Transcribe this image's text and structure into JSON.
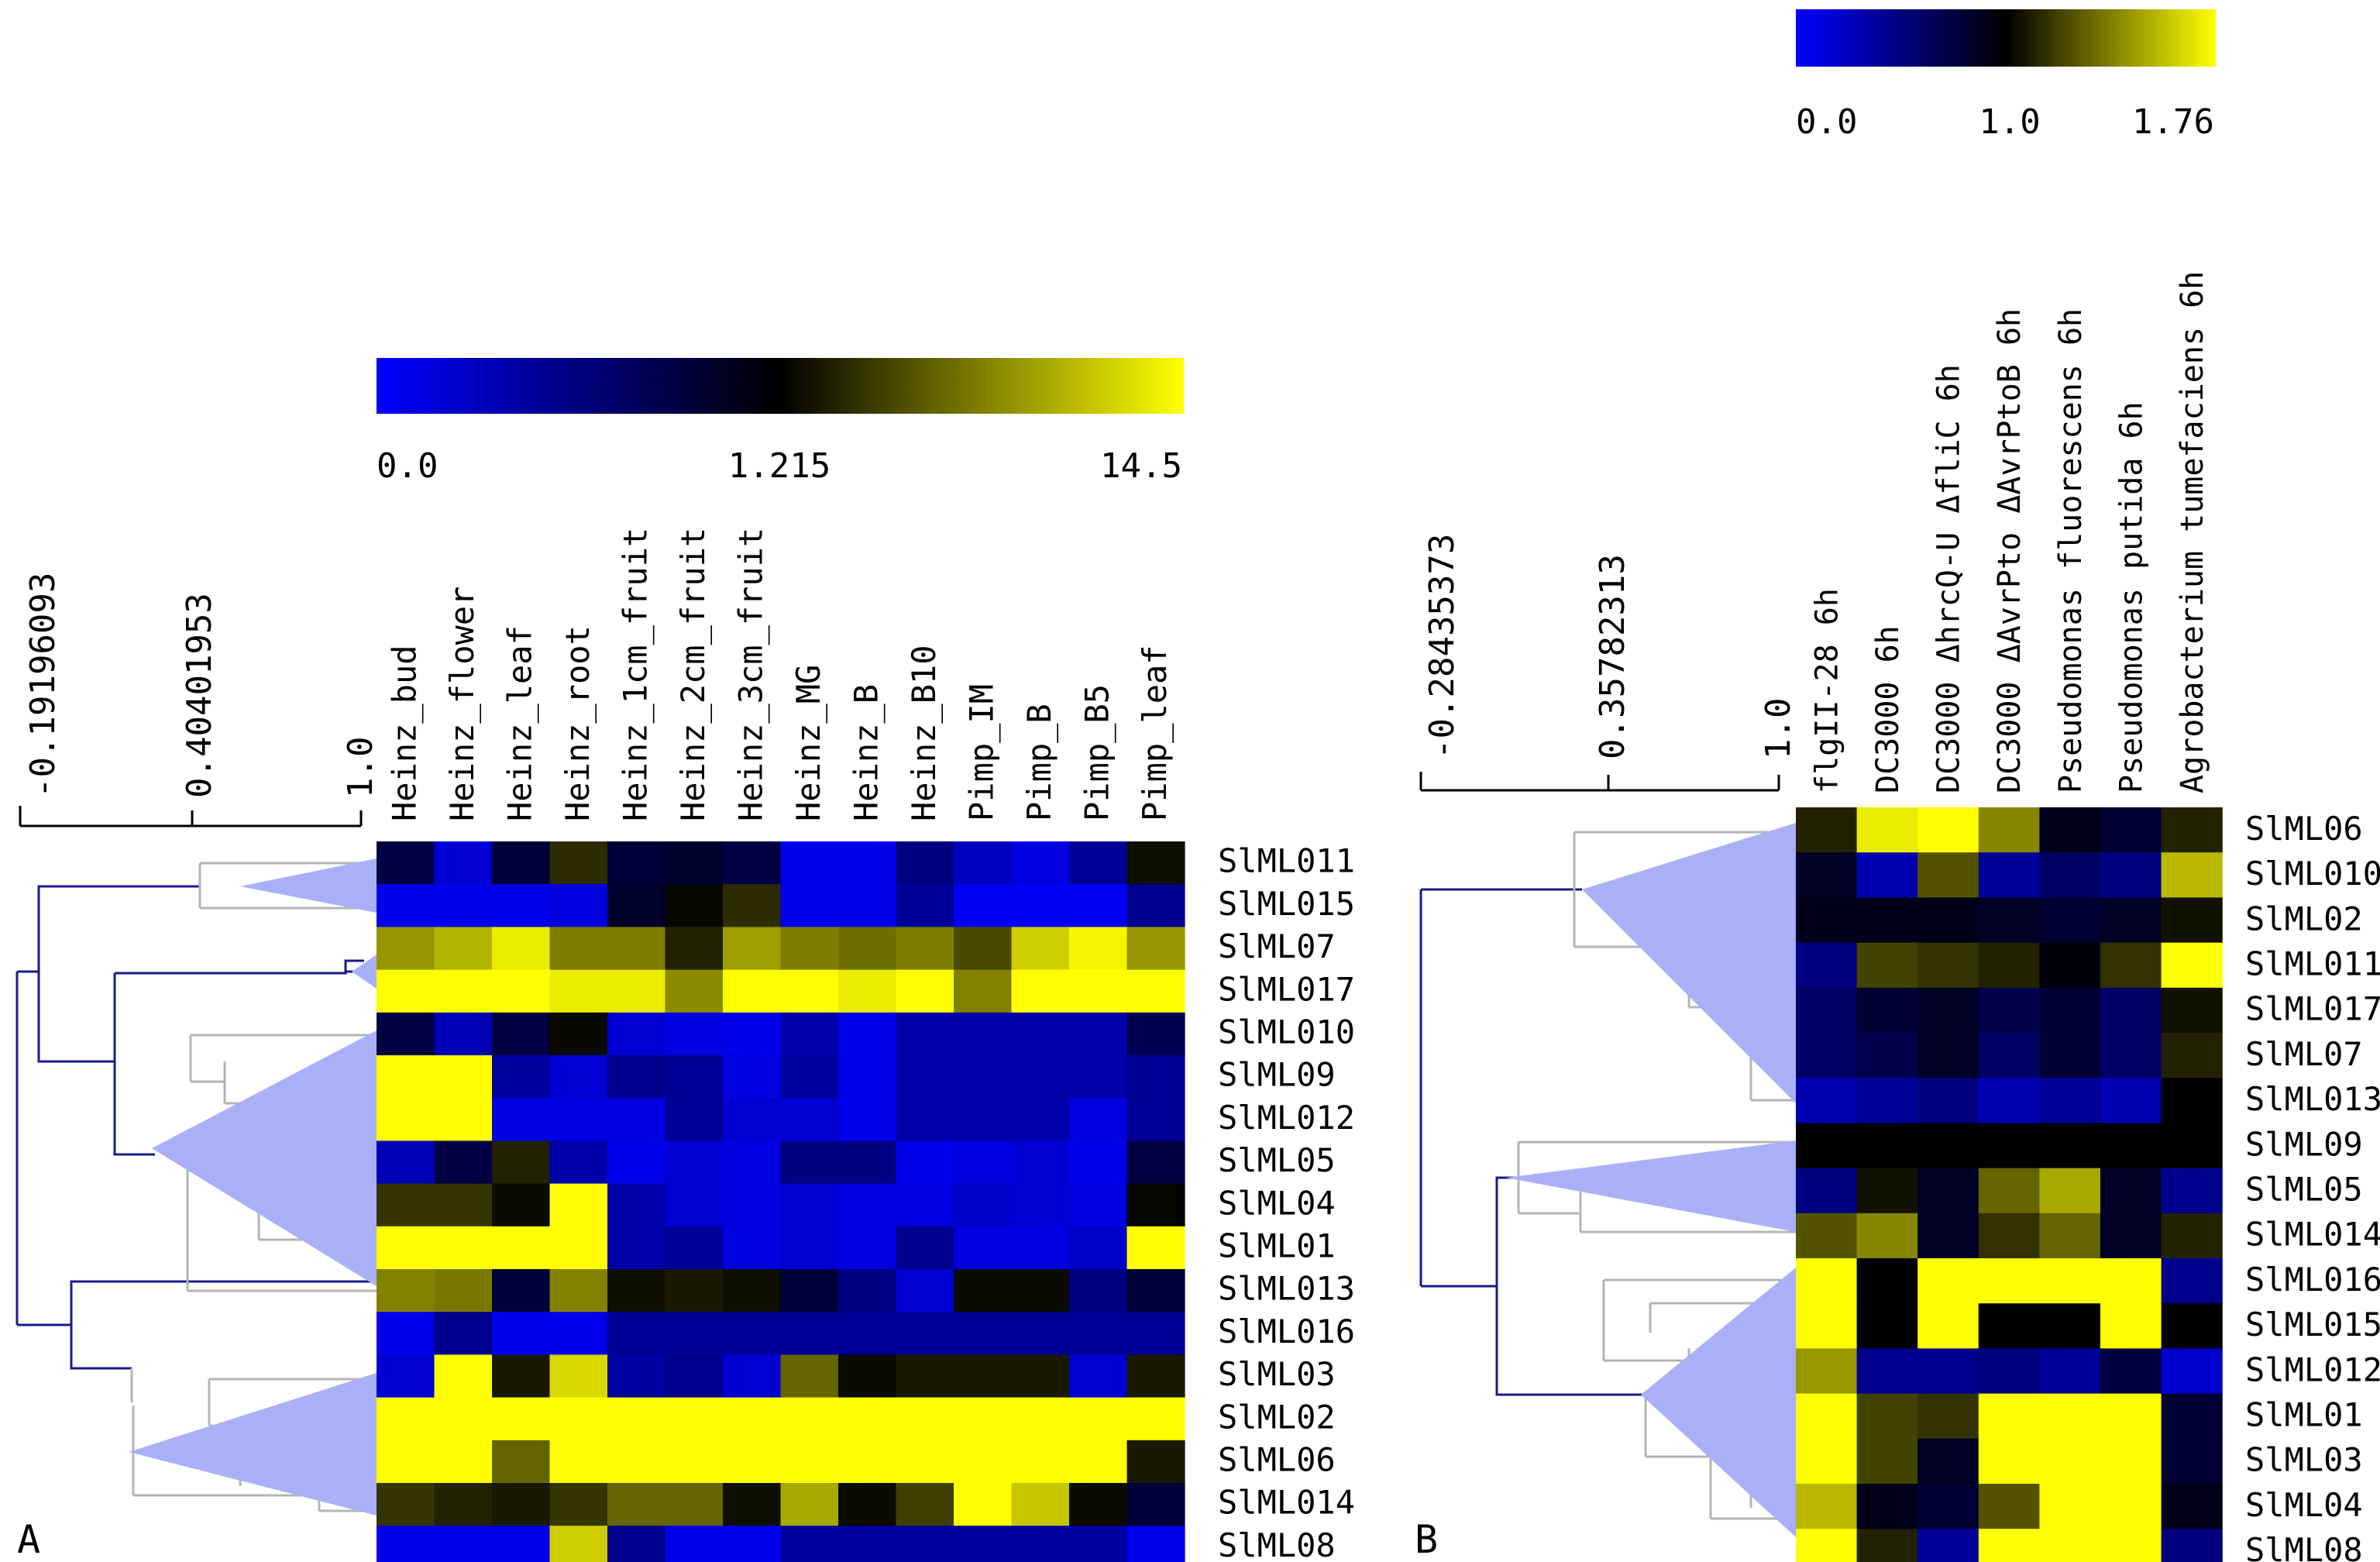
{
  "chart_data": [
    {
      "type": "heatmap",
      "panel_label": "A",
      "columns": [
        "Heinz_bud",
        "Heinz_flower",
        "Heinz_leaf",
        "Heinz_root",
        "Heinz_1cm_fruit",
        "Heinz_2cm_fruit",
        "Heinz_3cm_fruit",
        "Heinz_MG",
        "Heinz_B",
        "Heinz_B10",
        "Pimp_IM",
        "Pimp_B",
        "Pimp_B5",
        "Pimp_leaf"
      ],
      "rows": [
        "SlML011",
        "SlML015",
        "SlML07",
        "SlML017",
        "SlML010",
        "SlML09",
        "SlML012",
        "SlML05",
        "SlML04",
        "SlML01",
        "SlML013",
        "SlML016",
        "SlML03",
        "SlML02",
        "SlML06",
        "SlML014",
        "SlML08"
      ],
      "values": [
        [
          0.9,
          0.2,
          0.95,
          3.5,
          0.95,
          1.0,
          0.9,
          0.1,
          0.1,
          0.6,
          0.3,
          0.15,
          0.5,
          2.0
        ],
        [
          0.1,
          0.1,
          0.1,
          0.15,
          1.0,
          1.6,
          3.5,
          0.1,
          0.1,
          0.5,
          0.05,
          0.05,
          0.05,
          0.55
        ],
        [
          9.0,
          10.5,
          13.5,
          7.8,
          7.8,
          3.0,
          9.5,
          7.8,
          7.0,
          7.8,
          5.0,
          12.0,
          14.0,
          9.0
        ],
        [
          14.5,
          14.5,
          14.5,
          13.5,
          13.5,
          8.5,
          14.5,
          14.5,
          13.5,
          14.5,
          8.0,
          14.5,
          14.5,
          14.5
        ],
        [
          0.9,
          0.35,
          0.9,
          1.7,
          0.2,
          0.15,
          0.1,
          0.4,
          0.1,
          0.4,
          0.4,
          0.4,
          0.4,
          0.8
        ],
        [
          14.5,
          14.5,
          0.45,
          0.2,
          0.55,
          0.5,
          0.15,
          0.45,
          0.1,
          0.4,
          0.4,
          0.4,
          0.4,
          0.5
        ],
        [
          14.5,
          14.5,
          0.15,
          0.15,
          0.15,
          0.5,
          0.2,
          0.2,
          0.1,
          0.4,
          0.4,
          0.4,
          0.15,
          0.5
        ],
        [
          0.35,
          0.9,
          3.0,
          0.4,
          0.1,
          0.2,
          0.15,
          0.6,
          0.6,
          0.1,
          0.15,
          0.2,
          0.1,
          0.9
        ],
        [
          4.0,
          4.0,
          1.8,
          14.5,
          0.4,
          0.2,
          0.15,
          0.2,
          0.15,
          0.15,
          0.25,
          0.2,
          0.15,
          1.5
        ],
        [
          14.5,
          14.5,
          14.5,
          14.5,
          0.4,
          0.5,
          0.15,
          0.2,
          0.15,
          0.55,
          0.15,
          0.15,
          0.25,
          14.5
        ],
        [
          8.0,
          7.5,
          0.95,
          8.0,
          2.0,
          2.5,
          2.0,
          0.95,
          0.6,
          0.2,
          1.8,
          1.8,
          0.6,
          0.95
        ],
        [
          0.1,
          0.55,
          0.1,
          0.1,
          0.5,
          0.5,
          0.5,
          0.5,
          0.5,
          0.5,
          0.5,
          0.5,
          0.5,
          0.5
        ],
        [
          0.2,
          14.5,
          2.5,
          12.5,
          0.45,
          0.55,
          0.2,
          6.5,
          1.8,
          2.5,
          2.5,
          2.5,
          0.2,
          2.5
        ],
        [
          14.5,
          14.5,
          14.5,
          14.5,
          14.5,
          14.5,
          14.5,
          14.5,
          14.5,
          14.5,
          14.5,
          14.5,
          14.5,
          14.5
        ],
        [
          14.5,
          14.5,
          6.5,
          14.5,
          14.5,
          14.5,
          14.5,
          14.5,
          14.5,
          14.5,
          14.5,
          14.5,
          14.5,
          2.5
        ],
        [
          4.0,
          3.0,
          2.5,
          4.0,
          6.5,
          6.5,
          2.0,
          10.0,
          1.8,
          4.5,
          14.5,
          11.5,
          1.8,
          0.95
        ],
        [
          0.1,
          0.1,
          0.1,
          12.0,
          0.55,
          0.1,
          0.1,
          0.45,
          0.45,
          0.45,
          0.45,
          0.45,
          0.45,
          0.1
        ]
      ],
      "color_scale": {
        "min": 0.0,
        "mid": 1.215,
        "max": 14.5,
        "colors": [
          "#0000ff",
          "#000000",
          "#ffff00"
        ]
      },
      "scale_labels": [
        "0.0",
        "1.215",
        "14.5"
      ],
      "dendrogram_scale_labels": [
        "-0.19196093",
        "0.40401953",
        "1.0"
      ]
    },
    {
      "type": "heatmap",
      "panel_label": "B",
      "columns": [
        "flgII-28 6h",
        "DC3000 6h",
        "DC3000 ΔhrcQ-U ΔfliC 6h",
        "DC3000 ΔAvrPto ΔAvrPtoB 6h",
        "Pseudomonas fluorescens 6h",
        "Pseudomonas putida 6h",
        "Agrobacterium tumefaciens 6h"
      ],
      "rows": [
        "SlML06",
        "SlML010",
        "SlML02",
        "SlML011",
        "SlML017",
        "SlML07",
        "SlML013",
        "SlML09",
        "SlML05",
        "SlML014",
        "SlML016",
        "SlML015",
        "SlML012",
        "SlML01",
        "SlML03",
        "SlML04",
        "SlML08"
      ],
      "values": [
        [
          1.1,
          1.7,
          1.76,
          1.4,
          0.9,
          0.8,
          1.1
        ],
        [
          0.85,
          0.3,
          1.25,
          0.4,
          0.6,
          0.5,
          1.55
        ],
        [
          0.9,
          0.9,
          0.9,
          0.85,
          0.8,
          0.85,
          1.05
        ],
        [
          0.5,
          1.2,
          1.15,
          1.1,
          0.95,
          1.15,
          1.76
        ],
        [
          0.6,
          0.8,
          0.85,
          0.7,
          0.8,
          0.6,
          1.05
        ],
        [
          0.6,
          0.7,
          0.85,
          0.6,
          0.8,
          0.6,
          1.1
        ],
        [
          0.3,
          0.4,
          0.5,
          0.3,
          0.4,
          0.3,
          1.0
        ],
        [
          1.0,
          1.0,
          1.0,
          1.0,
          1.0,
          1.0,
          1.0
        ],
        [
          0.5,
          1.05,
          0.85,
          1.3,
          1.5,
          0.85,
          0.45
        ],
        [
          1.25,
          1.4,
          0.85,
          1.15,
          1.3,
          0.85,
          1.1
        ],
        [
          1.76,
          1.0,
          1.76,
          1.76,
          1.76,
          1.76,
          0.45
        ],
        [
          1.76,
          1.0,
          1.76,
          1.0,
          1.0,
          1.76,
          1.0
        ],
        [
          1.45,
          0.45,
          0.45,
          0.5,
          0.4,
          0.75,
          0.2
        ],
        [
          1.76,
          1.2,
          1.15,
          1.76,
          1.76,
          1.76,
          0.8
        ],
        [
          1.76,
          1.2,
          0.85,
          1.76,
          1.76,
          1.76,
          0.8
        ],
        [
          1.55,
          0.9,
          0.8,
          1.25,
          1.76,
          1.76,
          0.9
        ],
        [
          1.76,
          1.1,
          0.4,
          1.76,
          1.76,
          1.76,
          0.5
        ]
      ],
      "color_scale": {
        "min": 0.0,
        "mid": 1.0,
        "max": 1.76,
        "colors": [
          "#0000ff",
          "#000000",
          "#ffff00"
        ]
      },
      "scale_labels": [
        "0.0",
        "1.0",
        "1.76"
      ],
      "dendrogram_scale_labels": [
        "-0.28435373",
        "0.35782313",
        "1.0"
      ]
    }
  ],
  "colors": {
    "low": "#0000ff",
    "mid": "#000000",
    "high": "#ffff00",
    "tree_highlight": "#1a1a8c",
    "tree_gray": "#b4b4b4",
    "wedge": "#aab0f8"
  }
}
